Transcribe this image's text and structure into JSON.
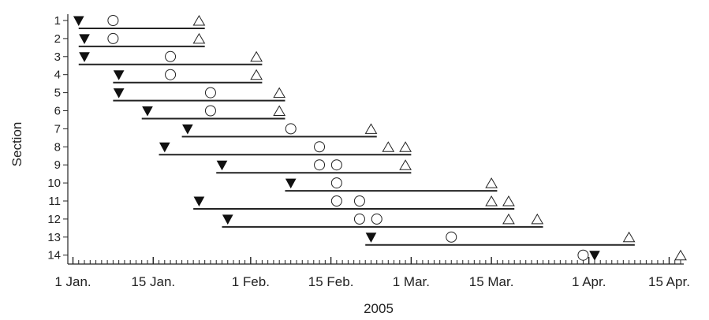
{
  "chart_data": {
    "type": "timeline",
    "xlabel": "2005",
    "ylabel": "Section",
    "x_range": [
      "2005-01-01",
      "2005-04-17"
    ],
    "x_ticks": [
      {
        "date": "2005-01-01",
        "label": "1 Jan."
      },
      {
        "date": "2005-01-15",
        "label": "15 Jan."
      },
      {
        "date": "2005-02-01",
        "label": "1 Feb."
      },
      {
        "date": "2005-02-15",
        "label": "15 Feb."
      },
      {
        "date": "2005-03-01",
        "label": "1 Mar."
      },
      {
        "date": "2005-03-15",
        "label": "15 Mar."
      },
      {
        "date": "2005-04-01",
        "label": "1 Apr."
      },
      {
        "date": "2005-04-15",
        "label": "15 Apr."
      }
    ],
    "sections": [
      {
        "label": "1",
        "bar": [
          "2005-01-02",
          "2005-01-24"
        ],
        "filled_triangles": [
          "2005-01-02"
        ],
        "circles": [
          "2005-01-08"
        ],
        "open_triangles": [
          "2005-01-23"
        ]
      },
      {
        "label": "2",
        "bar": [
          "2005-01-02",
          "2005-01-24"
        ],
        "filled_triangles": [
          "2005-01-03"
        ],
        "circles": [
          "2005-01-08"
        ],
        "open_triangles": [
          "2005-01-23"
        ]
      },
      {
        "label": "3",
        "bar": [
          "2005-01-02",
          "2005-02-03"
        ],
        "filled_triangles": [
          "2005-01-03"
        ],
        "circles": [
          "2005-01-18"
        ],
        "open_triangles": [
          "2005-02-02"
        ]
      },
      {
        "label": "4",
        "bar": [
          "2005-01-08",
          "2005-02-03"
        ],
        "filled_triangles": [
          "2005-01-09"
        ],
        "circles": [
          "2005-01-18"
        ],
        "open_triangles": [
          "2005-02-02"
        ]
      },
      {
        "label": "5",
        "bar": [
          "2005-01-08",
          "2005-02-07"
        ],
        "filled_triangles": [
          "2005-01-09"
        ],
        "circles": [
          "2005-01-25"
        ],
        "open_triangles": [
          "2005-02-06"
        ]
      },
      {
        "label": "6",
        "bar": [
          "2005-01-13",
          "2005-02-07"
        ],
        "filled_triangles": [
          "2005-01-14"
        ],
        "circles": [
          "2005-01-25"
        ],
        "open_triangles": [
          "2005-02-06"
        ]
      },
      {
        "label": "7",
        "bar": [
          "2005-01-20",
          "2005-02-23"
        ],
        "filled_triangles": [
          "2005-01-21"
        ],
        "circles": [
          "2005-02-08"
        ],
        "open_triangles": [
          "2005-02-22"
        ]
      },
      {
        "label": "8",
        "bar": [
          "2005-01-16",
          "2005-03-01"
        ],
        "filled_triangles": [
          "2005-01-17"
        ],
        "circles": [
          "2005-02-13"
        ],
        "open_triangles": [
          "2005-02-25",
          "2005-02-28"
        ]
      },
      {
        "label": "9",
        "bar": [
          "2005-01-26",
          "2005-03-01"
        ],
        "filled_triangles": [
          "2005-01-27"
        ],
        "circles": [
          "2005-02-13",
          "2005-02-16"
        ],
        "open_triangles": [
          "2005-02-28"
        ]
      },
      {
        "label": "10",
        "bar": [
          "2005-02-07",
          "2005-03-16"
        ],
        "filled_triangles": [
          "2005-02-08"
        ],
        "circles": [
          "2005-02-16"
        ],
        "open_triangles": [
          "2005-03-15"
        ]
      },
      {
        "label": "11",
        "bar": [
          "2005-01-22",
          "2005-03-19"
        ],
        "filled_triangles": [
          "2005-01-23"
        ],
        "circles": [
          "2005-02-16",
          "2005-02-20"
        ],
        "open_triangles": [
          "2005-03-15",
          "2005-03-18"
        ]
      },
      {
        "label": "12",
        "bar": [
          "2005-01-27",
          "2005-03-24"
        ],
        "filled_triangles": [
          "2005-01-28"
        ],
        "circles": [
          "2005-02-20",
          "2005-02-23"
        ],
        "open_triangles": [
          "2005-03-18",
          "2005-03-23"
        ]
      },
      {
        "label": "13",
        "bar": [
          "2005-02-21",
          "2005-04-09"
        ],
        "filled_triangles": [
          "2005-02-22"
        ],
        "circles": [
          "2005-03-08"
        ],
        "open_triangles": [
          "2005-04-08"
        ]
      },
      {
        "label": "14",
        "bar": null,
        "filled_triangles": [
          "2005-04-02"
        ],
        "circles": [
          "2005-03-31"
        ],
        "open_triangles": [
          "2005-04-17"
        ]
      }
    ]
  }
}
